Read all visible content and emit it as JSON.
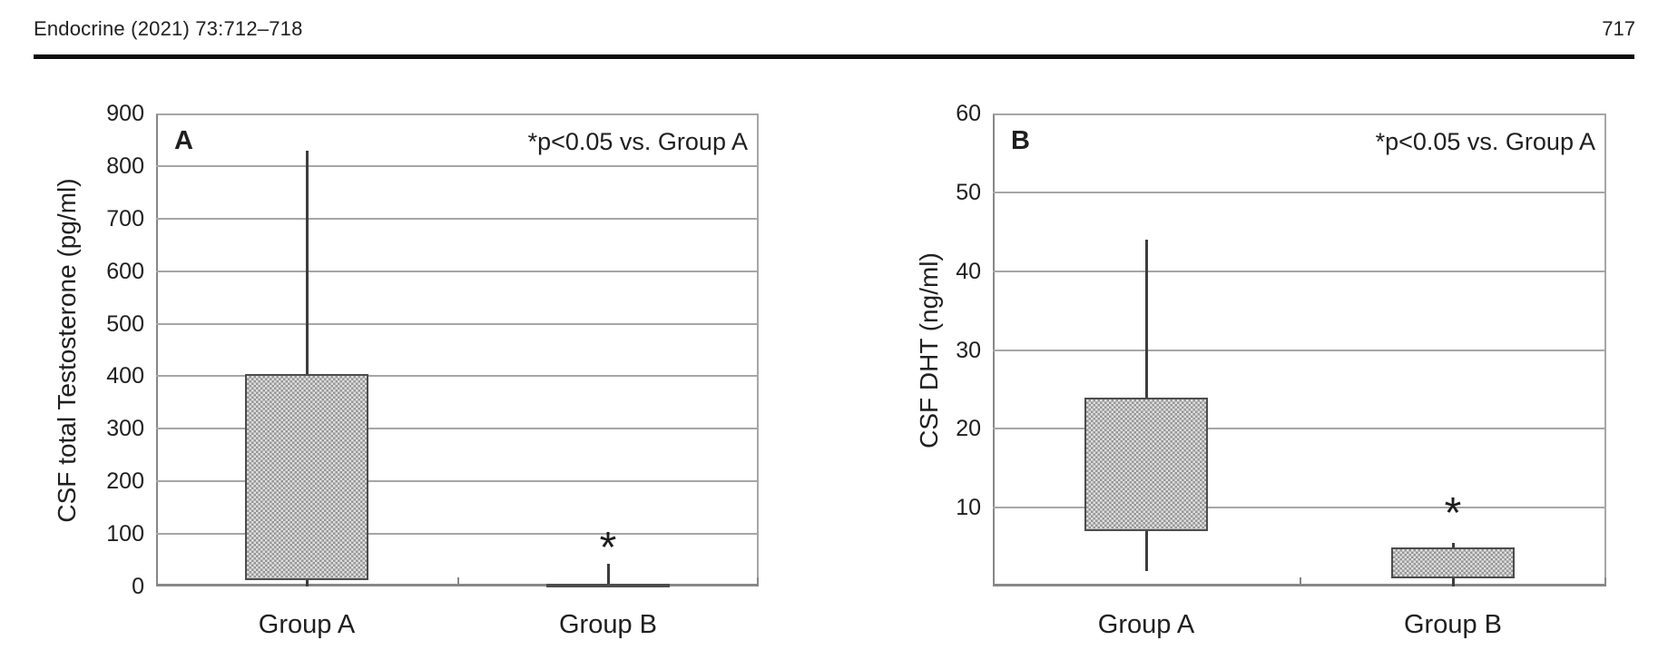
{
  "header": {
    "journal_ref": "Endocrine (2021) 73:712–718",
    "page_number": "717"
  },
  "colors": {
    "text": "#1f1f1f",
    "rule": "#0d0d0d",
    "axis": "#878787",
    "gridline": "#a6a6a6",
    "box_border": "#4c4c4c",
    "box_fill_light": "#dedede",
    "box_fill_dot": "#969696",
    "whisker": "#3d3d3d"
  },
  "chart_data": [
    {
      "type": "box",
      "panel_label": "A",
      "ylabel": "CSF total Testosterone (pg/ml)",
      "annotation": "*p<0.05 vs. Group A",
      "categories": [
        "Group A",
        "Group B"
      ],
      "ylim": [
        0,
        900
      ],
      "yticks": [
        0,
        100,
        200,
        300,
        400,
        500,
        600,
        700,
        800,
        900
      ],
      "grid": true,
      "legend": "none",
      "series": [
        {
          "category": "Group A",
          "box_low": 12,
          "box_high": 405,
          "whisker_low": 0,
          "whisker_high": 830,
          "significant": false
        },
        {
          "category": "Group B",
          "box_low": 0,
          "box_high": 6,
          "whisker_low": 0,
          "whisker_high": 44,
          "significant": true,
          "asterisk_y": 84
        }
      ]
    },
    {
      "type": "box",
      "panel_label": "B",
      "ylabel": "CSF DHT (ng/ml)",
      "annotation": "*p<0.05 vs. Group A",
      "categories": [
        "Group A",
        "Group B"
      ],
      "ylim": [
        0,
        60
      ],
      "yticks": [
        10,
        20,
        30,
        40,
        50,
        60
      ],
      "grid": true,
      "legend": "none",
      "series": [
        {
          "category": "Group A",
          "box_low": 7,
          "box_high": 24,
          "whisker_low": 2,
          "whisker_high": 44,
          "significant": false
        },
        {
          "category": "Group B",
          "box_low": 1,
          "box_high": 5,
          "whisker_low": 0,
          "whisker_high": 5.5,
          "significant": true,
          "asterisk_y": 10
        }
      ]
    }
  ]
}
